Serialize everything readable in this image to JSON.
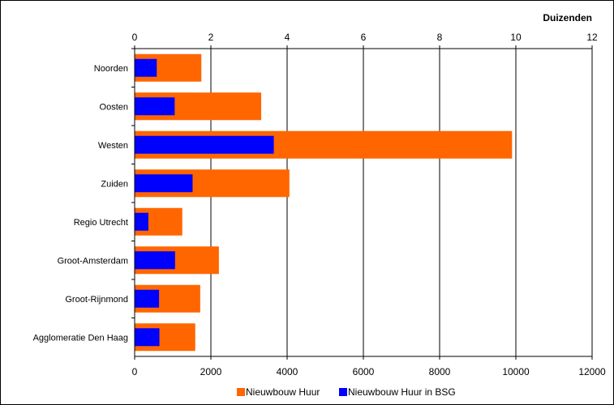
{
  "chart_data": {
    "type": "bar",
    "orientation": "horizontal",
    "categories": [
      "Noorden",
      "Oosten",
      "Westen",
      "Zuiden",
      "Regio Utrecht",
      "Groot-Amsterdam",
      "Groot-Rijnmond",
      "Agglomeratie Den Haag"
    ],
    "series": [
      {
        "name": "Nieuwbouw Huur",
        "color": "#ff6600",
        "values": [
          1750,
          3320,
          9900,
          4060,
          1250,
          2210,
          1720,
          1590
        ]
      },
      {
        "name": "Nieuwbouw Huur in BSG",
        "color": "#0000ff",
        "values": [
          580,
          1050,
          3650,
          1520,
          360,
          1060,
          640,
          650
        ]
      }
    ],
    "bottom_axis": {
      "range": [
        0,
        12000
      ],
      "ticks": [
        "0",
        "2000",
        "4000",
        "6000",
        "8000",
        "10000",
        "12000"
      ]
    },
    "top_axis": {
      "range": [
        0,
        12
      ],
      "ticks": [
        "0",
        "2",
        "4",
        "6",
        "8",
        "10",
        "12"
      ],
      "unit_label": "Duizenden"
    },
    "grid": true,
    "legend_position": "bottom"
  }
}
